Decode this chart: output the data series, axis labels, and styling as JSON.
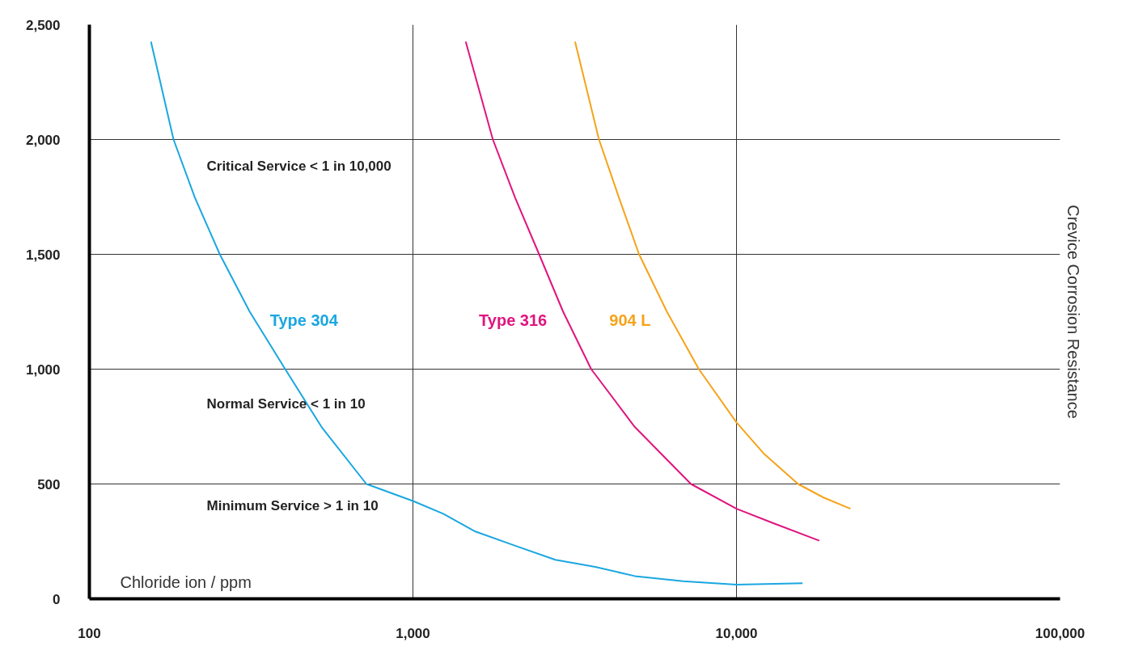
{
  "chart_data": {
    "type": "line",
    "xlabel": "Chloride ion / ppm",
    "ylabel": "Crevice Corrosion Resistance",
    "log": "x",
    "xlim": [
      100,
      100000
    ],
    "xticks": [
      {
        "value": 100,
        "label": "100"
      },
      {
        "value": 1000,
        "label": "1,000"
      },
      {
        "value": 10000,
        "label": "10,000"
      },
      {
        "value": 100000,
        "label": "100,000"
      }
    ],
    "ylim": [
      0,
      2500
    ],
    "yticks": [
      {
        "value": 0,
        "label": "0"
      },
      {
        "value": 500,
        "label": "500"
      },
      {
        "value": 1000,
        "label": "1,000"
      },
      {
        "value": 1500,
        "label": "1,500"
      },
      {
        "value": 2000,
        "label": "2,000"
      },
      {
        "value": 2500,
        "label": "2,500"
      }
    ],
    "grid": true,
    "marker": "none",
    "line_style": "solid",
    "series": [
      {
        "name": "Type 304",
        "color": "#1aa7e0",
        "x": [
          155,
          182,
          212,
          253,
          313,
          403,
          522,
          718,
          1000,
          1241,
          1559,
          2070,
          2754,
          3655,
          4850,
          6840,
          10000,
          16000
        ],
        "values": [
          2426,
          2000,
          1746,
          1500,
          1250,
          1000,
          748,
          500,
          426,
          370,
          293,
          231,
          170,
          139,
          99,
          77,
          62,
          68
        ]
      },
      {
        "name": "Type 316",
        "color": "#e0147f",
        "x": [
          1456,
          1766,
          2070,
          2455,
          2912,
          3556,
          4850,
          7230,
          10000,
          12950,
          18030
        ],
        "values": [
          2426,
          2000,
          1746,
          1500,
          1250,
          1000,
          748,
          500,
          392,
          330,
          253
        ]
      },
      {
        "name": "904 L",
        "color": "#f5a31a",
        "x": [
          3170,
          3758,
          4335,
          5000,
          6095,
          7650,
          10000,
          12190,
          15500,
          18580,
          22500
        ],
        "values": [
          2426,
          2000,
          1746,
          1500,
          1250,
          1000,
          768,
          630,
          500,
          441,
          392
        ]
      }
    ],
    "annotations": [
      "Critical Service < 1 in 10,000",
      "Normal  Service < 1 in 10",
      "Minimum  Service > 1 in 10"
    ]
  }
}
